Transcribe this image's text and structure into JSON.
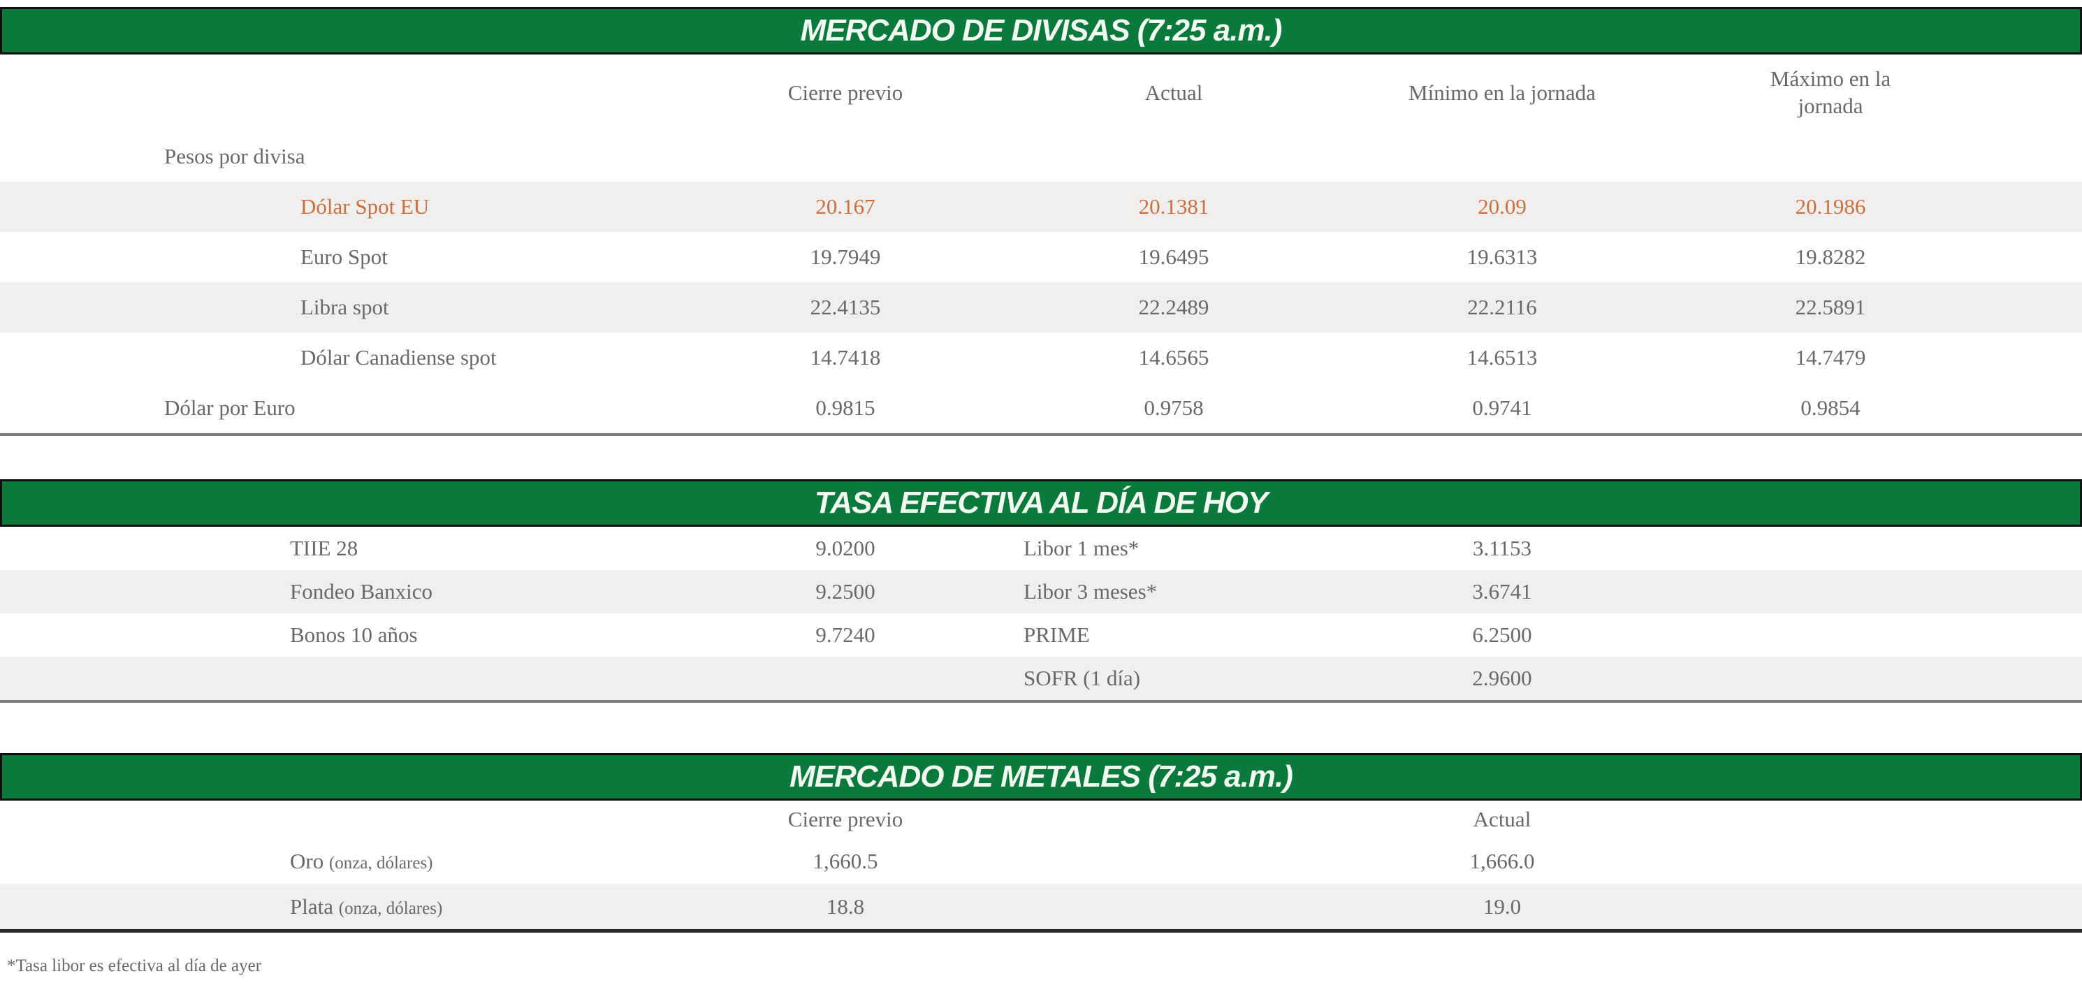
{
  "colors": {
    "green": "#0A7A3C",
    "accent": "#CB703F",
    "text": "#696969",
    "stripe": "#F0EFED",
    "title_text": "#F2FAF2",
    "bar_border": "#101010",
    "border": "#7D7D7D",
    "border_dark": "#282828"
  },
  "divisas": {
    "title": "MERCADO DE DIVISAS (7:25 a.m.)",
    "headers": [
      "Cierre previo",
      "Actual",
      "Mínimo en la jornada",
      "Máximo en la\njornada"
    ],
    "group_label": "Pesos por divisa",
    "rows": [
      {
        "label": "Dólar Spot EU",
        "values": [
          "20.167",
          "20.1381",
          "20.09",
          "20.1986"
        ]
      },
      {
        "label": "Euro Spot",
        "values": [
          "19.7949",
          "19.6495",
          "19.6313",
          "19.8282"
        ]
      },
      {
        "label": "Libra spot",
        "values": [
          "22.4135",
          "22.2489",
          "22.2116",
          "22.5891"
        ]
      },
      {
        "label": "Dólar Canadiense spot",
        "values": [
          "14.7418",
          "14.6565",
          "14.6513",
          "14.7479"
        ]
      },
      {
        "label": "Dólar por Euro",
        "values": [
          "0.9815",
          "0.9758",
          "0.9741",
          "0.9854"
        ]
      }
    ]
  },
  "tasas": {
    "title": "TASA EFECTIVA AL DÍA DE HOY",
    "rows": [
      {
        "left_label": "TIIE 28",
        "left_value": "9.0200",
        "right_label": "Libor 1 mes*",
        "right_value": "3.1153"
      },
      {
        "left_label": "Fondeo Banxico",
        "left_value": "9.2500",
        "right_label": "Libor 3 meses*",
        "right_value": "3.6741"
      },
      {
        "left_label": "Bonos 10 años",
        "left_value": "9.7240",
        "right_label": "PRIME",
        "right_value": "6.2500"
      },
      {
        "left_label": "",
        "left_value": "",
        "right_label": "SOFR (1 día)",
        "right_value": "2.9600"
      }
    ]
  },
  "metales": {
    "title": "MERCADO DE METALES (7:25 a.m.)",
    "headers": [
      "Cierre previo",
      "Actual"
    ],
    "rows": [
      {
        "label": "Oro",
        "label_note": "(onza, dólares)",
        "values": [
          "1,660.5",
          "1,666.0"
        ]
      },
      {
        "label": "Plata",
        "label_note": "(onza, dólares)",
        "values": [
          "18.8",
          "19.0"
        ]
      }
    ]
  },
  "page": {
    "footnote": "*Tasa libor es efectiva al día de ayer"
  }
}
